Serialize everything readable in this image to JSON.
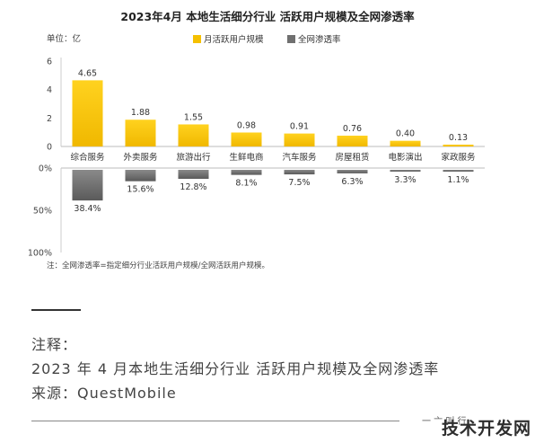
{
  "chart_data": {
    "type": "bar",
    "title": "2023年4月 本地生活细分行业 活跃用户规模及全网渗透率",
    "unit_label": "单位：亿",
    "legend": {
      "position": "top-center",
      "items": [
        {
          "name": "月活跃用户规模",
          "color": "#F5C000"
        },
        {
          "name": "全网渗透率",
          "color": "#707070"
        }
      ]
    },
    "categories": [
      "综合服务",
      "外卖服务",
      "旅游出行",
      "生鲜电商",
      "汽车服务",
      "房屋租赁",
      "电影演出",
      "家政服务"
    ],
    "series": [
      {
        "name": "月活跃用户规模",
        "unit": "亿",
        "values": [
          4.65,
          1.88,
          1.55,
          0.98,
          0.91,
          0.76,
          0.4,
          0.13
        ],
        "labels": [
          "4.65",
          "1.88",
          "1.55",
          "0.98",
          "0.91",
          "0.76",
          "0.40",
          "0.13"
        ],
        "ylim": [
          0,
          6
        ],
        "yticks": [
          "0",
          "2",
          "4",
          "6"
        ]
      },
      {
        "name": "全网渗透率",
        "unit": "%",
        "values": [
          38.4,
          15.6,
          12.8,
          8.1,
          7.5,
          6.3,
          3.3,
          1.1
        ],
        "labels": [
          "38.4%",
          "15.6%",
          "12.8%",
          "8.1%",
          "7.5%",
          "6.3%",
          "3.3%",
          "1.1%"
        ],
        "ylim": [
          0,
          100
        ],
        "yticks": [
          "0%",
          "50%",
          "100%"
        ]
      }
    ],
    "note": "注：全网渗透率=指定细分行业活跃用户规模/全网活跃用户规模。"
  },
  "caption": {
    "line1": "注释：",
    "line2": "2023 年 4 月本地生活细分行业 活跃用户规模及全网渗透率",
    "line3": "来源：QuestMobile"
  },
  "partial_text": "一 亠 叫 行",
  "watermark": "技术开发网"
}
